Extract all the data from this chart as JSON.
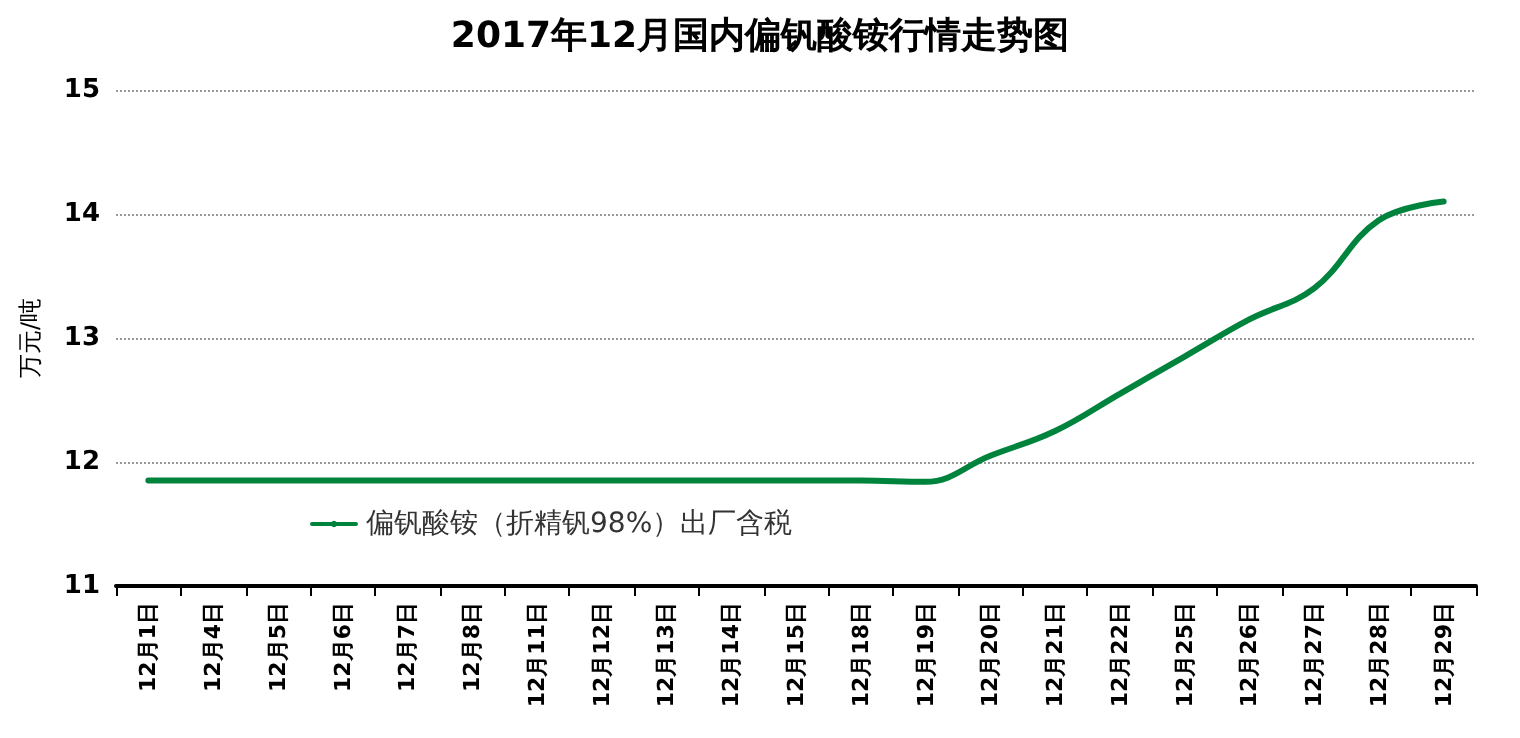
{
  "chart_data": {
    "type": "line",
    "title": "2017年12月国内偏钒酸铵行情走势图",
    "ylabel": "万元/吨",
    "categories": [
      "12月1日",
      "12月4日",
      "12月5日",
      "12月6日",
      "12月7日",
      "12月8日",
      "12月11日",
      "12月12日",
      "12月13日",
      "12月14日",
      "12月15日",
      "12月18日",
      "12月19日",
      "12月20日",
      "12月21日",
      "12月22日",
      "12月25日",
      "12月26日",
      "12月27日",
      "12月28日",
      "12月29日"
    ],
    "series": [
      {
        "name": "偏钒酸铵（折精钒98%）出厂含税",
        "color": "#00843d",
        "values": [
          11.85,
          11.85,
          11.85,
          11.85,
          11.85,
          11.85,
          11.85,
          11.85,
          11.85,
          11.85,
          11.85,
          11.85,
          11.84,
          12.05,
          12.25,
          12.55,
          12.85,
          13.15,
          13.4,
          13.95,
          14.1
        ]
      }
    ],
    "ylim": [
      11,
      15
    ],
    "yticks": [
      11,
      12,
      13,
      14,
      15
    ],
    "grid": "y",
    "legend": "bottom left",
    "marker": "none",
    "line_style": "solid"
  }
}
